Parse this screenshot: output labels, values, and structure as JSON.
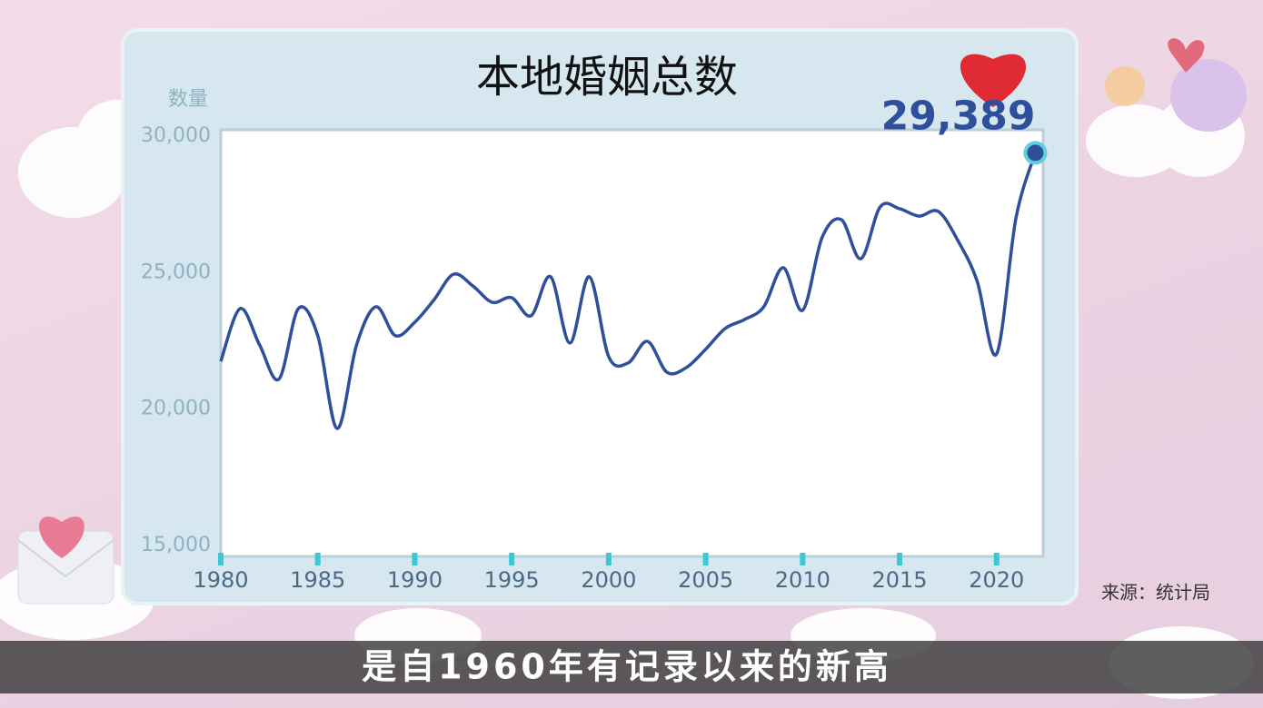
{
  "chart_data": {
    "type": "line",
    "title": "本地婚姻总数",
    "y_label": "数量",
    "source": "来源：统计局",
    "caption": "是自1960年有记录以来的新高",
    "x": [
      1980,
      1981,
      1982,
      1983,
      1984,
      1985,
      1986,
      1987,
      1988,
      1989,
      1990,
      1991,
      1992,
      1993,
      1994,
      1995,
      1996,
      1997,
      1998,
      1999,
      2000,
      2001,
      2002,
      2003,
      2004,
      2005,
      2006,
      2007,
      2008,
      2009,
      2010,
      2011,
      2012,
      2013,
      2014,
      2015,
      2016,
      2017,
      2018,
      2019,
      2020,
      2021,
      2022
    ],
    "values": [
      21750,
      23680,
      22350,
      21100,
      23680,
      22690,
      19290,
      22350,
      23750,
      22690,
      23180,
      24010,
      24940,
      24510,
      23910,
      24080,
      23420,
      24850,
      22420,
      24850,
      21920,
      21690,
      22480,
      21350,
      21520,
      22190,
      22950,
      23280,
      23750,
      25180,
      23620,
      26280,
      26940,
      25510,
      27410,
      27340,
      27070,
      27240,
      26180,
      24680,
      22020,
      27000,
      29389
    ],
    "value_labels": [
      null,
      null,
      null,
      null,
      null,
      null,
      null,
      null,
      null,
      null,
      null,
      null,
      null,
      null,
      null,
      null,
      null,
      null,
      null,
      null,
      null,
      null,
      null,
      null,
      null,
      null,
      null,
      null,
      null,
      null,
      null,
      null,
      null,
      null,
      null,
      null,
      null,
      null,
      null,
      null,
      null,
      null,
      "29,389"
    ],
    "color": "#2f4f9a",
    "xlim": [
      1980,
      2022.4
    ],
    "xticks": [
      1980,
      1985,
      1990,
      1995,
      2000,
      2005,
      2010,
      2015,
      2020
    ],
    "ylim": [
      15000,
      30000
    ],
    "yticks": [
      {
        "value": 15000,
        "label": "15,000"
      },
      {
        "value": 20000,
        "label": "20,000"
      },
      {
        "value": 25000,
        "label": "25,000"
      },
      {
        "value": 30000,
        "label": "30,000"
      }
    ],
    "grid": false
  }
}
